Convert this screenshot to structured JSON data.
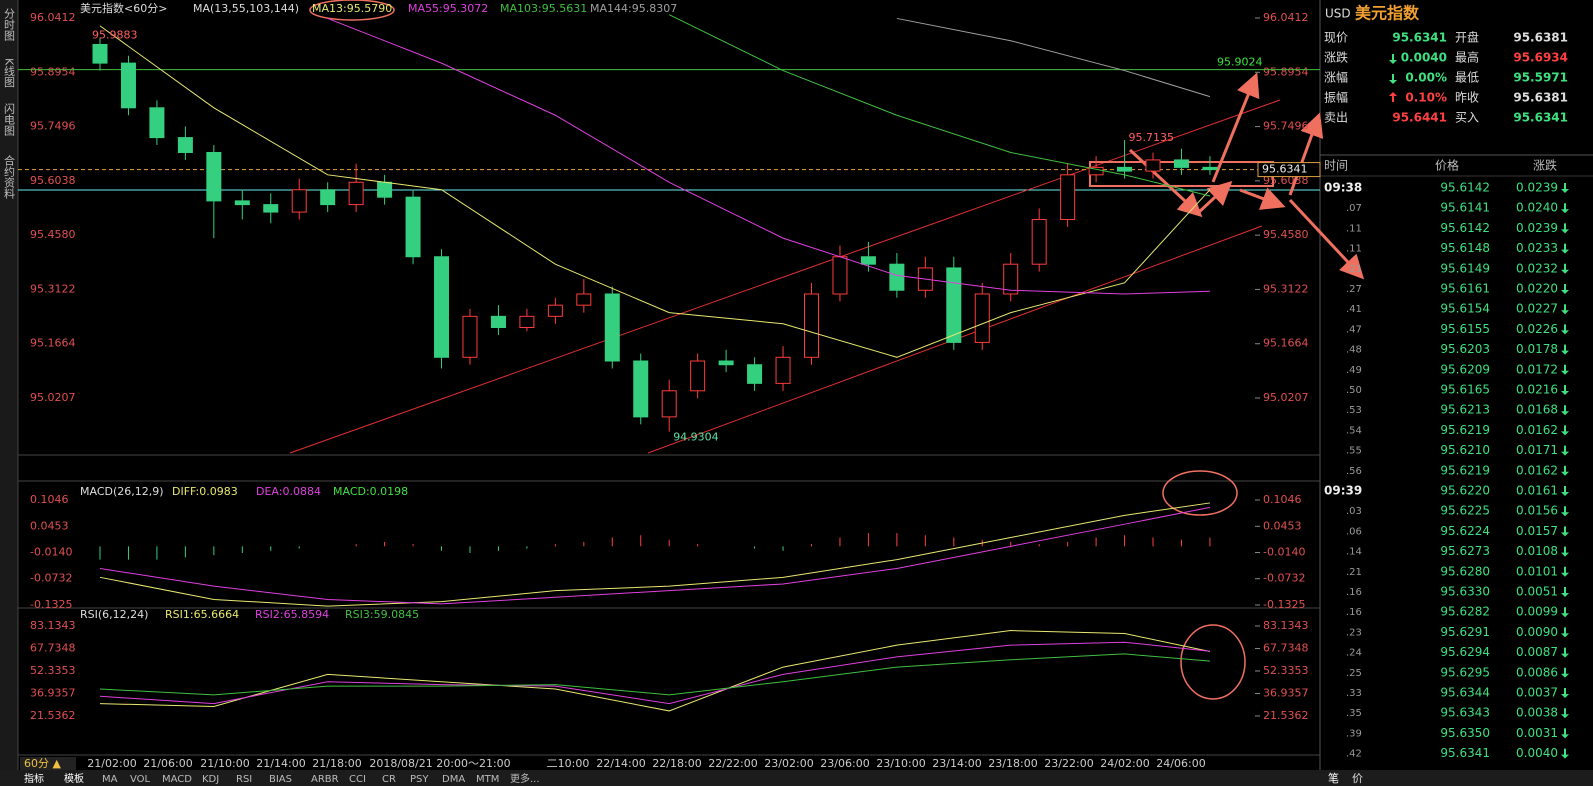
{
  "sidebar": [
    "分时图",
    "K线图",
    "闪电图",
    "合约资料"
  ],
  "kline": {
    "title": "美元指数<60分>",
    "ma_label": "MA(13,55,103,144)",
    "price_ylim": [
      94.8676,
      96.0895
    ],
    "price_yticks": [
      96.0412,
      95.8954,
      95.7496,
      95.6038,
      {
        "value": 95.458,
        "label": "95.4580"
      },
      95.3122,
      95.1664,
      95.0207
    ],
    "opens": [
      95.97,
      95.92,
      95.8,
      95.72,
      95.68,
      95.55,
      95.54,
      95.52,
      95.58,
      95.54,
      95.6,
      95.56,
      95.4,
      95.13,
      95.24,
      95.21,
      95.24,
      95.27,
      95.3,
      95.12,
      94.97,
      95.04,
      95.12,
      95.11,
      95.06,
      95.13,
      95.3,
      95.4,
      95.38,
      95.31,
      95.37,
      95.17,
      95.3,
      95.38,
      95.5,
      95.62,
      95.64,
      95.63,
      95.66,
      95.64
    ],
    "highs": [
      95.9883,
      95.94,
      95.82,
      95.75,
      95.7,
      95.58,
      95.57,
      95.61,
      95.6,
      95.65,
      95.62,
      95.58,
      95.42,
      95.26,
      95.27,
      95.26,
      95.29,
      95.34,
      95.32,
      95.14,
      95.07,
      95.14,
      95.15,
      95.13,
      95.16,
      95.33,
      95.43,
      95.44,
      95.41,
      95.4,
      95.4,
      95.33,
      95.41,
      95.53,
      95.65,
      95.67,
      95.7135,
      95.68,
      95.69,
      95.67
    ],
    "lows": [
      95.9,
      95.78,
      95.7,
      95.66,
      95.45,
      95.5,
      95.49,
      95.5,
      95.52,
      95.52,
      95.54,
      95.38,
      95.1,
      95.11,
      95.19,
      95.2,
      95.22,
      95.25,
      95.1,
      94.95,
      94.9304,
      95.02,
      95.09,
      95.04,
      95.04,
      95.11,
      95.28,
      95.36,
      95.29,
      95.29,
      95.15,
      95.15,
      95.28,
      95.36,
      95.48,
      95.6,
      95.61,
      95.61,
      95.62,
      95.62
    ],
    "closes": [
      95.92,
      95.8,
      95.72,
      95.68,
      95.55,
      95.54,
      95.52,
      95.58,
      95.54,
      95.6,
      95.56,
      95.4,
      95.13,
      95.24,
      95.21,
      95.24,
      95.27,
      95.3,
      95.12,
      94.97,
      95.04,
      95.12,
      95.11,
      95.06,
      95.13,
      95.3,
      95.4,
      95.38,
      95.31,
      95.37,
      95.17,
      95.3,
      95.38,
      95.5,
      95.62,
      95.64,
      95.63,
      95.66,
      95.64,
      95.634
    ],
    "x": [
      0,
      4,
      8,
      12,
      16,
      20,
      24,
      28,
      32,
      36,
      39
    ],
    "ma": [
      {
        "name": "MA13:95.5790",
        "color": "#e8e870",
        "values": [
          96.02,
          95.8,
          95.62,
          95.58,
          95.38,
          95.25,
          95.22,
          95.13,
          95.25,
          95.33,
          95.58
        ]
      },
      {
        "name": "MA55:95.3072",
        "color": "#e040e0",
        "values": [
          null,
          null,
          96.04,
          95.92,
          95.78,
          95.6,
          95.45,
          95.35,
          95.31,
          95.3,
          95.3072
        ]
      },
      {
        "name": "MA103:95.5631",
        "color": "#40c040",
        "values": [
          null,
          null,
          null,
          null,
          null,
          96.05,
          95.9,
          95.78,
          95.68,
          95.62,
          95.5631
        ]
      },
      {
        "name": "MA144:95.8307",
        "color": "#a0a0a0",
        "values": [
          null,
          null,
          null,
          null,
          null,
          null,
          null,
          96.04,
          95.98,
          95.9,
          95.83
        ]
      }
    ],
    "high_mark": 95.9883,
    "high_mark2": 95.7135,
    "low_mark": 94.9304,
    "level": 95.9024,
    "last": 95.6341
  },
  "macd": {
    "label": "MACD(26,12,9)",
    "diff_name": "DIFF:0.0983",
    "dea_name": "DEA:0.0884",
    "macd_name": "MACD:0.0198",
    "ylim": [
      -0.1393,
      0.1453
    ],
    "yticks": [
      0.1046,
      0.0453,
      {
        "value": -0.014,
        "label": "-0.0140"
      },
      -0.0732,
      -0.1325
    ],
    "diff": [
      -0.07,
      -0.12,
      -0.135,
      -0.125,
      -0.1,
      -0.09,
      -0.07,
      -0.03,
      0.02,
      0.07,
      0.098
    ],
    "dea": [
      -0.05,
      -0.09,
      -0.12,
      -0.13,
      -0.115,
      -0.1,
      -0.085,
      -0.05,
      0,
      0.05,
      0.088
    ],
    "hist": [
      -0.03,
      -0.03,
      -0.03,
      -0.025,
      -0.02,
      -0.015,
      -0.01,
      -0.005,
      0,
      0.005,
      0.01,
      0.005,
      -0.01,
      -0.015,
      -0.01,
      -0.005,
      0.005,
      0.01,
      0.02,
      0.025,
      0.015,
      0.005,
      0,
      -0.005,
      -0.01,
      0.005,
      0.02,
      0.03,
      0.03,
      0.025,
      0.02,
      0.015,
      0.01,
      0.005,
      0.01,
      0.02,
      0.025,
      0.02,
      0.015,
      0.0198
    ]
  },
  "rsi": {
    "label": "RSI(6,12,24)",
    "series": [
      {
        "name": "RSI1:65.6664",
        "color": "#e8e870",
        "values": [
          30,
          28,
          50,
          45,
          40,
          25,
          55,
          70,
          80,
          78,
          65.67
        ]
      },
      {
        "name": "RSI2:65.8594",
        "color": "#e040e0",
        "values": [
          35,
          30,
          45,
          43,
          42,
          30,
          50,
          62,
          70,
          72,
          65.86
        ]
      },
      {
        "name": "RSI3:59.0845",
        "color": "#40c040",
        "values": [
          40,
          36,
          42,
          42,
          43,
          36,
          45,
          55,
          60,
          64,
          59.08
        ]
      }
    ],
    "ylim": [
      5.1,
      92.7
    ],
    "yticks": [
      83.1343,
      67.7348,
      52.3353,
      36.9357,
      21.5362
    ]
  },
  "x_labels": [
    "21/02:00",
    "21/06:00",
    "21/10:00",
    "21/14:00",
    "21/18:00",
    "2018/08/21 20:00～21:00",
    "二10:00",
    "22/14:00",
    "22/18:00",
    "22/22:00",
    "23/02:00",
    "23/06:00",
    "23/10:00",
    "23/14:00",
    "23/18:00",
    "23/22:00",
    "24/02:00",
    "24/06:00"
  ],
  "period": "60分 ▲",
  "toolbar": [
    "指标",
    "模板",
    "MA",
    "VOL",
    "MACD",
    "KDJ",
    "RSI",
    "BIAS",
    "ARBR",
    "CCI",
    "CR",
    "PSY",
    "DMA",
    "MTM",
    "更多..."
  ],
  "quote": {
    "symbol": "USD",
    "name": "美元指数",
    "rows": [
      [
        "现价",
        "95.6341",
        "开盘",
        "95.6381"
      ],
      [
        "涨跌",
        "0.0040",
        "最高",
        "95.6934"
      ],
      [
        "涨幅",
        "0.00%",
        "最低",
        "95.5971"
      ],
      [
        "振幅",
        "0.10%",
        "昨收",
        "95.6381"
      ],
      [
        "卖出",
        "95.6441",
        "买入",
        "95.6341"
      ]
    ]
  },
  "ticks": {
    "header": [
      "时间",
      "价格",
      "涨跌"
    ],
    "rows": [
      [
        "09:38",
        "95.6142",
        "0.0239"
      ],
      [
        ".07",
        "95.6141",
        "0.0240"
      ],
      [
        ".11",
        "95.6142",
        "0.0239"
      ],
      [
        ".11",
        "95.6148",
        "0.0233"
      ],
      [
        ".21",
        "95.6149",
        "0.0232"
      ],
      [
        ".27",
        "95.6161",
        "0.0220"
      ],
      [
        ".41",
        "95.6154",
        "0.0227"
      ],
      [
        ".47",
        "95.6155",
        "0.0226"
      ],
      [
        ".48",
        "95.6203",
        "0.0178"
      ],
      [
        ".49",
        "95.6209",
        "0.0172"
      ],
      [
        ".50",
        "95.6165",
        "0.0216"
      ],
      [
        ".53",
        "95.6213",
        "0.0168"
      ],
      [
        ".54",
        "95.6219",
        "0.0162"
      ],
      [
        ".55",
        "95.6210",
        "0.0171"
      ],
      [
        ".56",
        "95.6219",
        "0.0162"
      ],
      [
        "09:39",
        "95.6220",
        "0.0161"
      ],
      [
        ".03",
        "95.6225",
        "0.0156"
      ],
      [
        ".06",
        "95.6224",
        "0.0157"
      ],
      [
        ".14",
        "95.6273",
        "0.0108"
      ],
      [
        ".21",
        "95.6280",
        "0.0101"
      ],
      [
        ".16",
        "95.6330",
        "0.0051"
      ],
      [
        ".16",
        "95.6282",
        "0.0099"
      ],
      [
        ".23",
        "95.6291",
        "0.0090"
      ],
      [
        ".24",
        "95.6294",
        "0.0087"
      ],
      [
        ".25",
        "95.6295",
        "0.0086"
      ],
      [
        ".33",
        "95.6344",
        "0.0037"
      ],
      [
        ".35",
        "95.6343",
        "0.0038"
      ],
      [
        ".39",
        "95.6350",
        "0.0031"
      ],
      [
        ".42",
        "95.6341",
        "0.0040"
      ]
    ]
  },
  "bottom_right": [
    "笔",
    "价"
  ]
}
